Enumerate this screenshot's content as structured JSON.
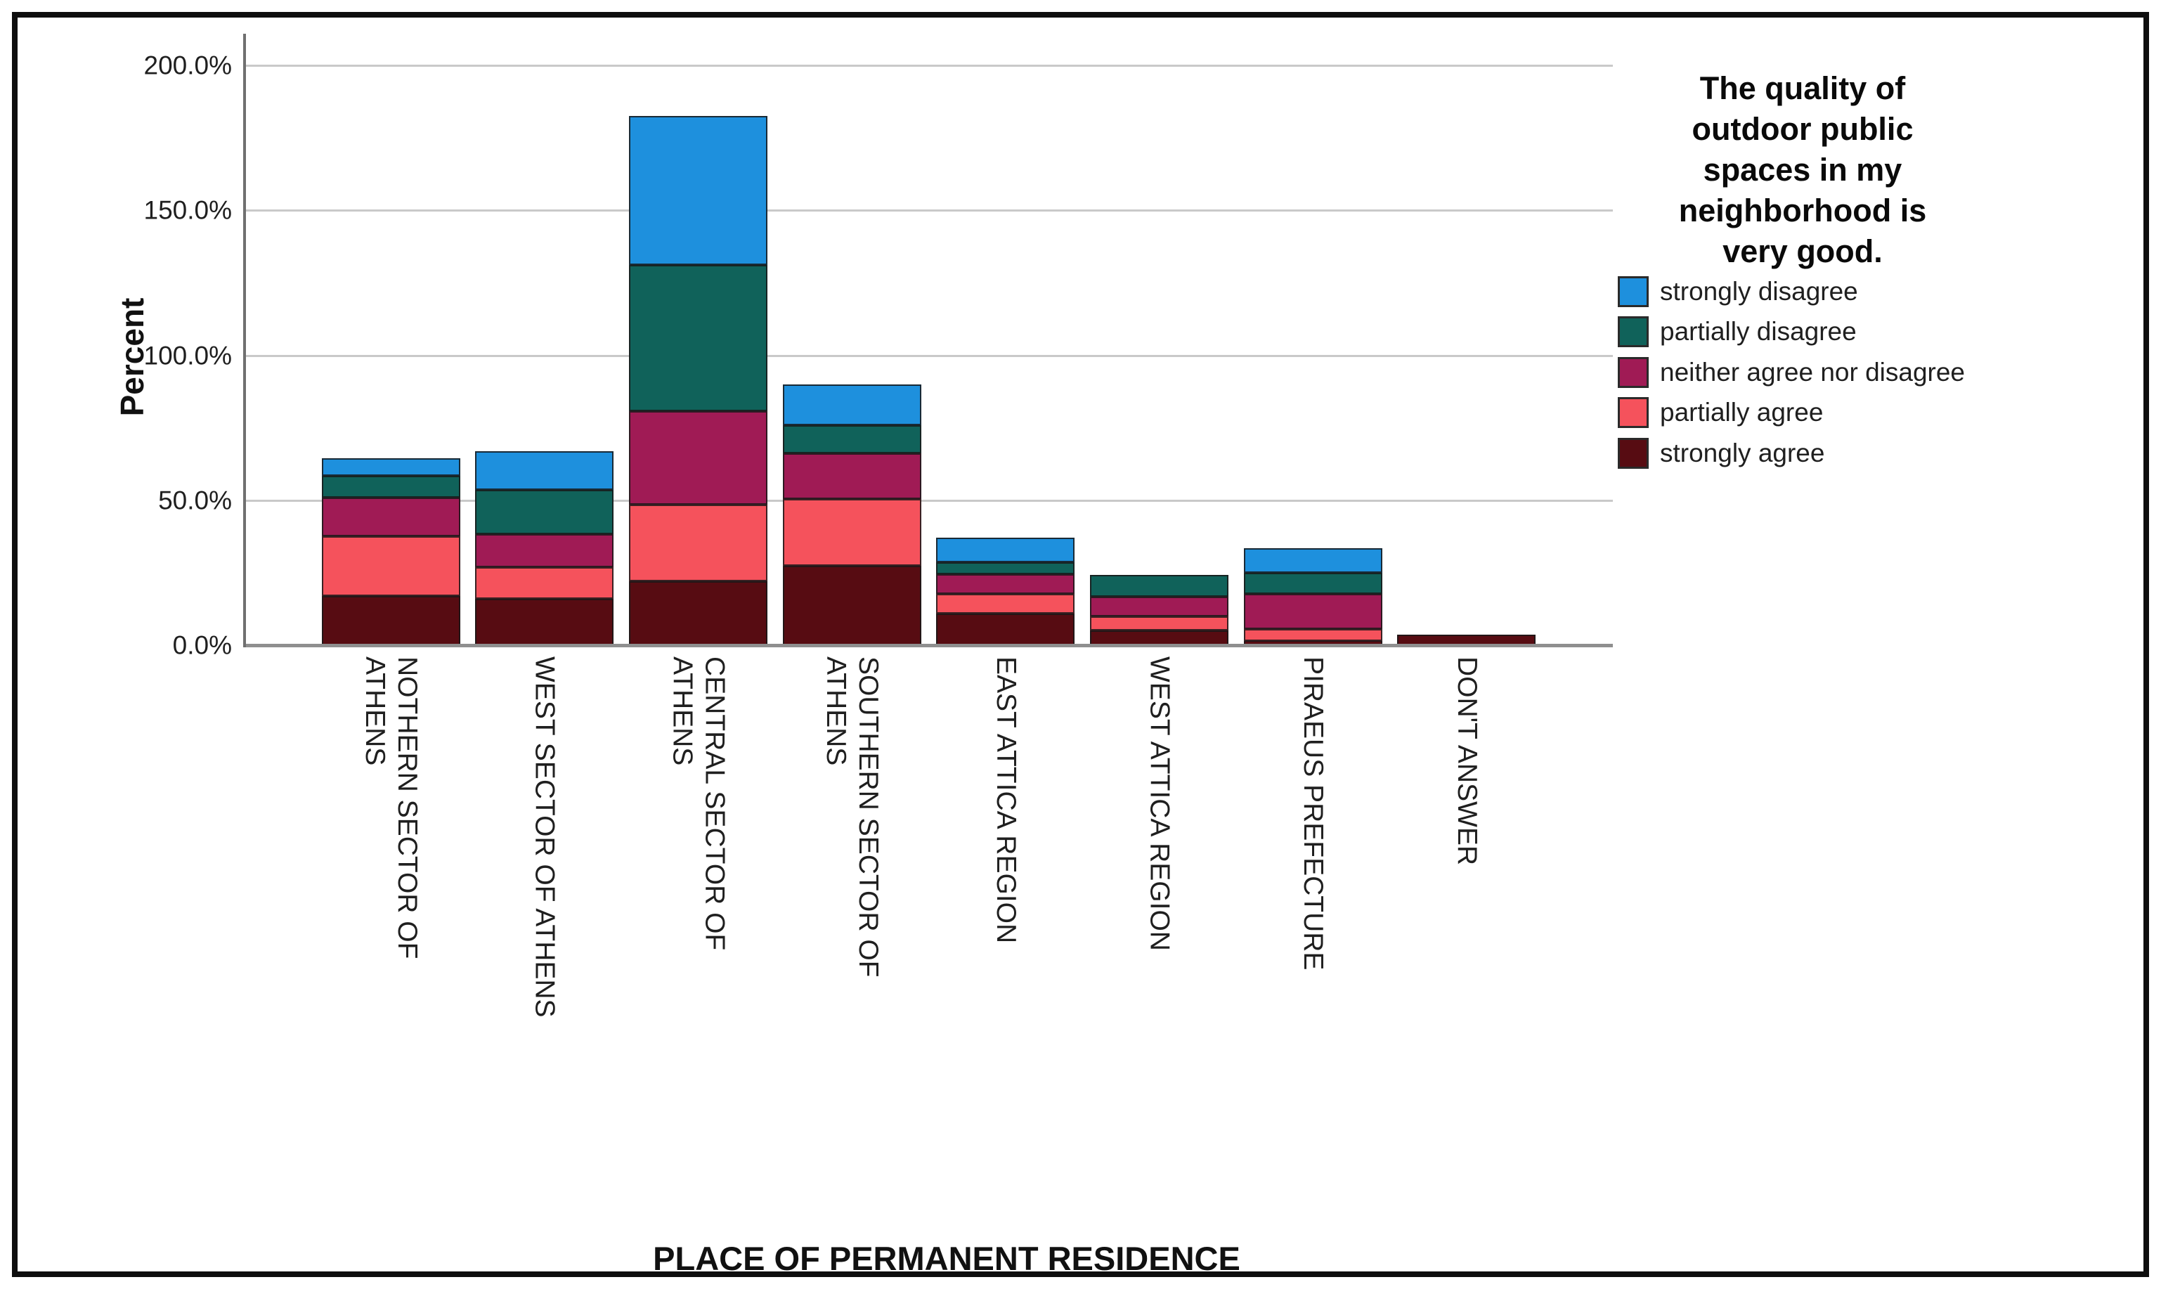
{
  "chart_data": {
    "type": "bar",
    "stacked": true,
    "ylabel": "Percent",
    "xlabel": "PLACE OF PERMANENT RESIDENCE",
    "legend_title": "The quality of\noutdoor public\nspaces in my\nneighborhood is\nvery good.",
    "categories": [
      "NOTHERN SECTOR OF\nATHENS",
      "WEST SECTOR OF ATHENS",
      "CENTRAL SECTOR OF\nATHENS",
      "SOUTHERN SECTOR OF\nATHENS",
      "EAST ATTICA REGION",
      "WEST ATTICA REGION",
      "PIRAEUS PREFECTURE",
      "DON'T ANSWER"
    ],
    "series": [
      {
        "name": "strongly agree",
        "color": "#570C12",
        "values": [
          17.0,
          16.0,
          22.1,
          27.4,
          10.9,
          5.1,
          1.6,
          3.6
        ]
      },
      {
        "name": "partially agree",
        "color": "#F5525C",
        "values": [
          20.6,
          10.9,
          26.4,
          23.0,
          6.8,
          4.8,
          4.0,
          0
        ]
      },
      {
        "name": "neither agree nor disagree",
        "color": "#A01B55",
        "values": [
          13.3,
          11.4,
          32.2,
          15.8,
          6.8,
          6.8,
          12.1,
          0
        ]
      },
      {
        "name": "partially disagree",
        "color": "#10625A",
        "values": [
          7.5,
          15.3,
          50.4,
          9.7,
          4.1,
          7.5,
          7.3,
          0
        ]
      },
      {
        "name": "strongly disagree",
        "color": "#1E90DD",
        "values": [
          6.1,
          13.3,
          51.4,
          14.1,
          8.5,
          0,
          8.5,
          0
        ]
      }
    ],
    "legend_order": [
      "strongly disagree",
      "partially disagree",
      "neither agree nor disagree",
      "partially agree",
      "strongly agree"
    ],
    "yticks": [
      "0.0%",
      "50.0%",
      "100.0%",
      "150.0%",
      "200.0%"
    ],
    "ytick_values": [
      0,
      50,
      100,
      150,
      200
    ],
    "ylim": [
      0,
      210
    ],
    "grid": true,
    "legend_position": "right"
  },
  "colors": {
    "gridline": "#c9c9c9",
    "axis_x": "#8f8f8f",
    "axis_y": "#707070",
    "frame": "#0e0e0e"
  }
}
